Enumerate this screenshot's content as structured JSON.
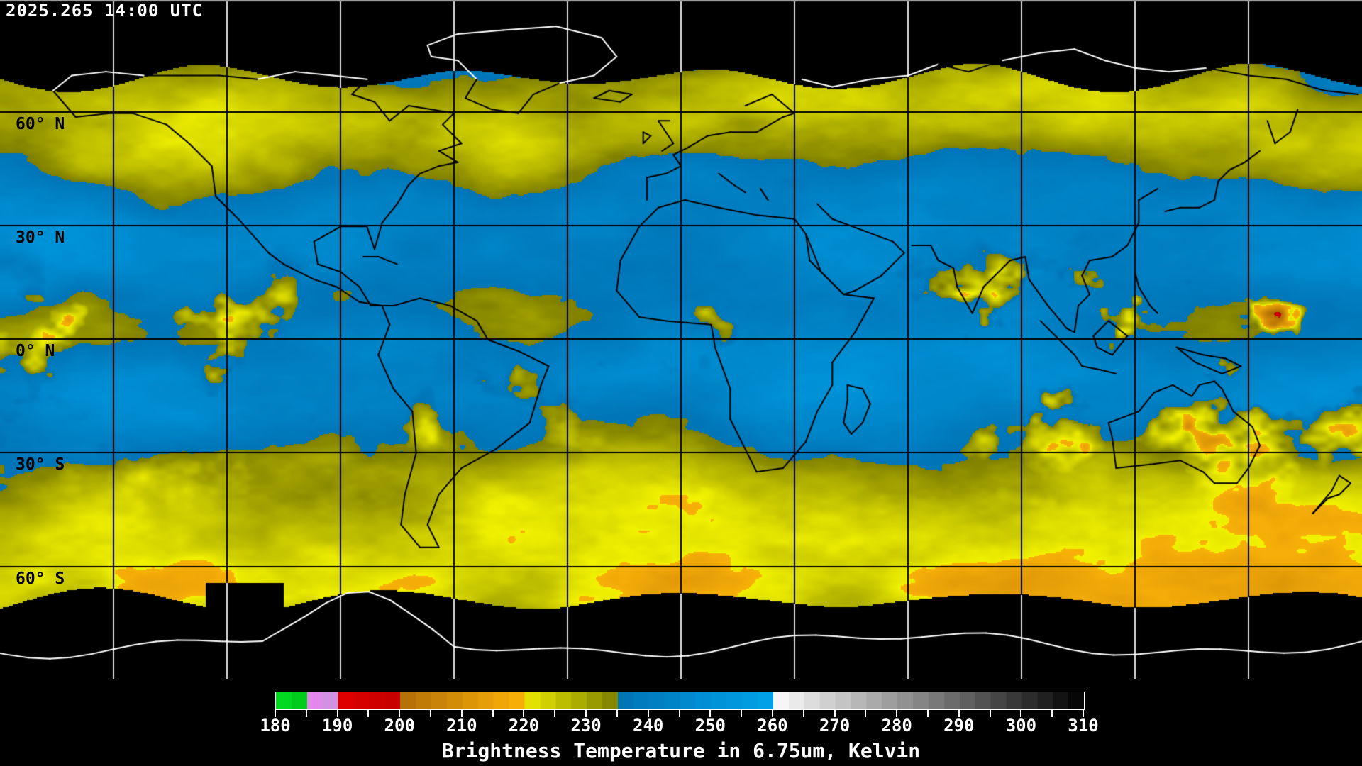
{
  "header": {
    "timestamp": "2025.265 14:00 UTC"
  },
  "map": {
    "latitude_labels": [
      {
        "label": "60° N"
      },
      {
        "label": "30° N"
      },
      {
        "label": "0° N"
      },
      {
        "label": "30° S"
      },
      {
        "label": "60° S"
      }
    ],
    "grid_interval_deg": 30,
    "no_data_color": "#000000",
    "coastline_color_over_data": "#000000",
    "coastline_color_over_nodata": "#ffffff"
  },
  "colorbar": {
    "title": "Brightness Temperature in 6.75um, Kelvin",
    "min": 180,
    "max": 310,
    "minor_tick_step": 5,
    "major_tick_step": 10,
    "tick_labels": [
      "180",
      "190",
      "200",
      "210",
      "220",
      "230",
      "240",
      "250",
      "260",
      "270",
      "280",
      "290",
      "300",
      "310"
    ],
    "segments": [
      {
        "from": 180,
        "to": 184.5,
        "color_from": "#00e020",
        "color_to": "#00c81e"
      },
      {
        "from": 184.5,
        "to": 190,
        "color_from": "#f080f0",
        "color_to": "#c898dc"
      },
      {
        "from": 190,
        "to": 199.5,
        "color_from": "#e20000",
        "color_to": "#c60000"
      },
      {
        "from": 199.5,
        "to": 219,
        "color_from": "#b06c06",
        "color_to": "#f8b008"
      },
      {
        "from": 219,
        "to": 235,
        "color_from": "#f2f200",
        "color_to": "#7e7e00"
      },
      {
        "from": 235,
        "to": 259.5,
        "color_from": "#0074b6",
        "color_to": "#00a2e8"
      },
      {
        "from": 259.5,
        "to": 310,
        "color_from": "#ffffff",
        "color_to": "#000000"
      }
    ]
  }
}
